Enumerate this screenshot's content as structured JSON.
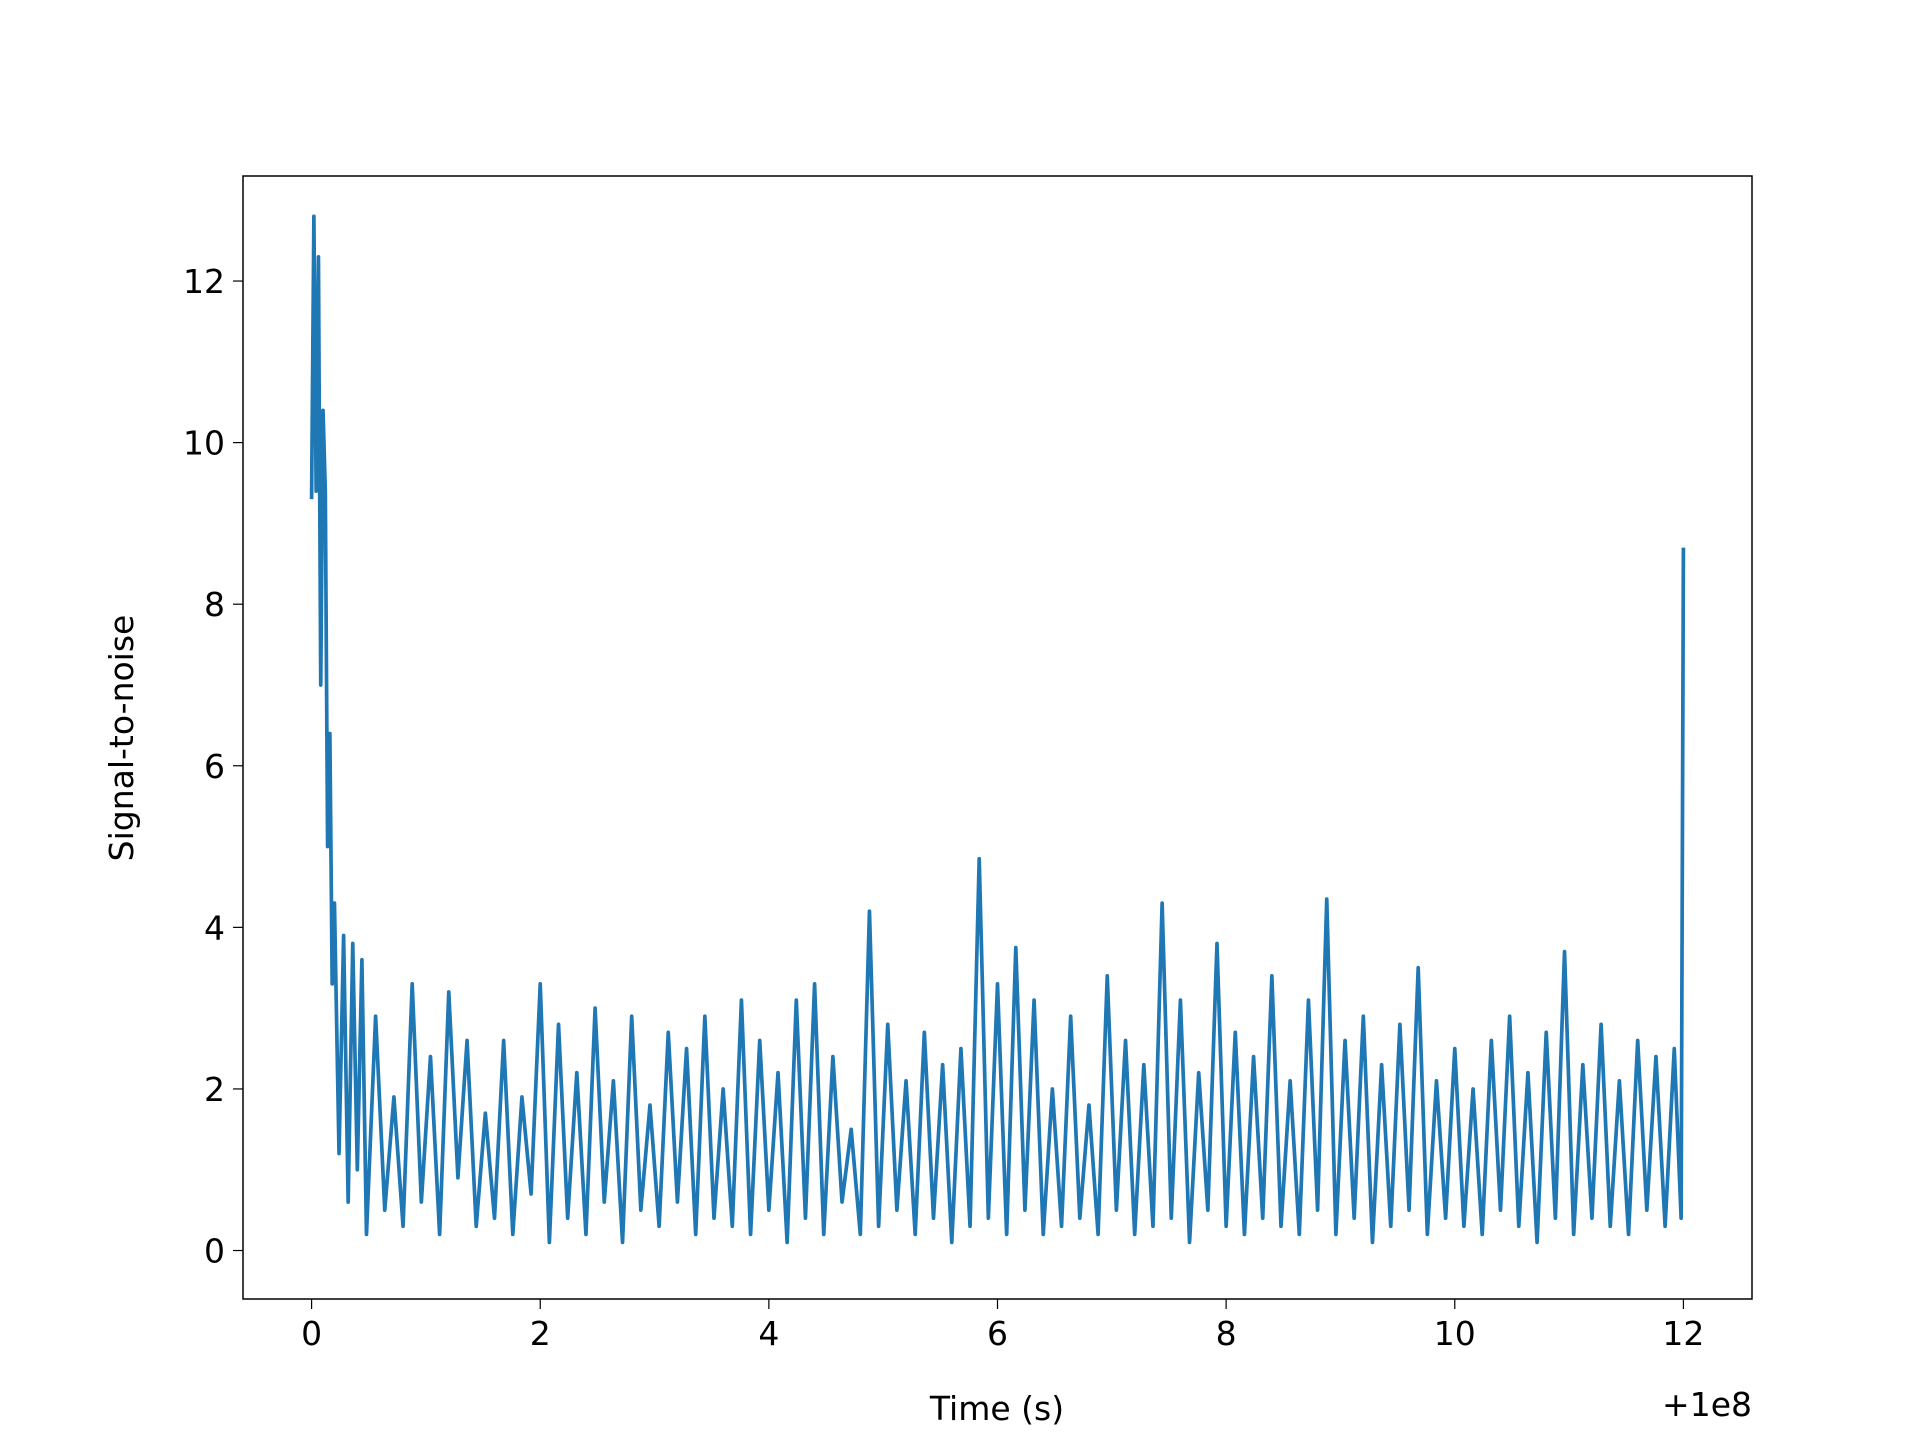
{
  "chart_data": {
    "type": "line",
    "xlabel": "Time (s)",
    "ylabel": "Signal-to-noise",
    "x_offset_label": "+1e8",
    "xlim": [
      -0.6,
      12.6
    ],
    "ylim": [
      -0.6,
      13.3
    ],
    "xticks": [
      0,
      2,
      4,
      6,
      8,
      10,
      12
    ],
    "yticks": [
      0,
      2,
      4,
      6,
      8,
      10,
      12
    ],
    "x": [
      0,
      0.02,
      0.04,
      0.06,
      0.08,
      0.1,
      0.12,
      0.14,
      0.16,
      0.18,
      0.2,
      0.24,
      0.28,
      0.32,
      0.36,
      0.4,
      0.44,
      0.48,
      0.56,
      0.64,
      0.72,
      0.8,
      0.88,
      0.96,
      1.04,
      1.12,
      1.2,
      1.28,
      1.36,
      1.44,
      1.52,
      1.6,
      1.68,
      1.76,
      1.84,
      1.92,
      2.0,
      2.08,
      2.16,
      2.24,
      2.32,
      2.4,
      2.48,
      2.56,
      2.64,
      2.72,
      2.8,
      2.88,
      2.96,
      3.04,
      3.12,
      3.2,
      3.28,
      3.36,
      3.44,
      3.52,
      3.6,
      3.68,
      3.76,
      3.84,
      3.92,
      4.0,
      4.08,
      4.16,
      4.24,
      4.32,
      4.4,
      4.48,
      4.56,
      4.64,
      4.72,
      4.8,
      4.88,
      4.96,
      5.04,
      5.12,
      5.2,
      5.28,
      5.36,
      5.44,
      5.52,
      5.6,
      5.68,
      5.76,
      5.84,
      5.92,
      6.0,
      6.08,
      6.16,
      6.24,
      6.32,
      6.4,
      6.48,
      6.56,
      6.64,
      6.72,
      6.8,
      6.88,
      6.96,
      7.04,
      7.12,
      7.2,
      7.28,
      7.36,
      7.44,
      7.52,
      7.6,
      7.68,
      7.76,
      7.84,
      7.92,
      8.0,
      8.08,
      8.16,
      8.24,
      8.32,
      8.4,
      8.48,
      8.56,
      8.64,
      8.72,
      8.8,
      8.88,
      8.96,
      9.04,
      9.12,
      9.2,
      9.28,
      9.36,
      9.44,
      9.52,
      9.6,
      9.68,
      9.76,
      9.84,
      9.92,
      10.0,
      10.08,
      10.16,
      10.24,
      10.32,
      10.4,
      10.48,
      10.56,
      10.64,
      10.72,
      10.8,
      10.88,
      10.96,
      11.04,
      11.12,
      11.2,
      11.28,
      11.36,
      11.44,
      11.52,
      11.6,
      11.68,
      11.76,
      11.84,
      11.92,
      11.98,
      12.0
    ],
    "series": [
      {
        "name": "Signal-to-noise",
        "color": "#1f77b4",
        "values": [
          9.3,
          12.8,
          9.4,
          12.3,
          7.0,
          10.4,
          9.4,
          5.0,
          6.4,
          3.3,
          4.3,
          1.2,
          3.9,
          0.6,
          3.8,
          1.0,
          3.6,
          0.2,
          2.9,
          0.5,
          1.9,
          0.3,
          3.3,
          0.6,
          2.4,
          0.2,
          3.2,
          0.9,
          2.6,
          0.3,
          1.7,
          0.4,
          2.6,
          0.2,
          1.9,
          0.7,
          3.3,
          0.1,
          2.8,
          0.4,
          2.2,
          0.2,
          3.0,
          0.6,
          2.1,
          0.1,
          2.9,
          0.5,
          1.8,
          0.3,
          2.7,
          0.6,
          2.5,
          0.2,
          2.9,
          0.4,
          2.0,
          0.3,
          3.1,
          0.2,
          2.6,
          0.5,
          2.2,
          0.1,
          3.1,
          0.4,
          3.3,
          0.2,
          2.4,
          0.6,
          1.5,
          0.2,
          4.2,
          0.3,
          2.8,
          0.5,
          2.1,
          0.2,
          2.7,
          0.4,
          2.3,
          0.1,
          2.5,
          0.3,
          4.85,
          0.4,
          3.3,
          0.2,
          3.75,
          0.5,
          3.1,
          0.2,
          2.0,
          0.3,
          2.9,
          0.4,
          1.8,
          0.2,
          3.4,
          0.5,
          2.6,
          0.2,
          2.3,
          0.3,
          4.3,
          0.4,
          3.1,
          0.1,
          2.2,
          0.5,
          3.8,
          0.3,
          2.7,
          0.2,
          2.4,
          0.4,
          3.4,
          0.3,
          2.1,
          0.2,
          3.1,
          0.5,
          4.35,
          0.2,
          2.6,
          0.4,
          2.9,
          0.1,
          2.3,
          0.3,
          2.8,
          0.5,
          3.5,
          0.2,
          2.1,
          0.4,
          2.5,
          0.3,
          2.0,
          0.2,
          2.6,
          0.5,
          2.9,
          0.3,
          2.2,
          0.1,
          2.7,
          0.4,
          3.7,
          0.2,
          2.3,
          0.4,
          2.8,
          0.3,
          2.1,
          0.2,
          2.6,
          0.5,
          2.4,
          0.3,
          2.5,
          0.4,
          8.7
        ]
      }
    ]
  }
}
